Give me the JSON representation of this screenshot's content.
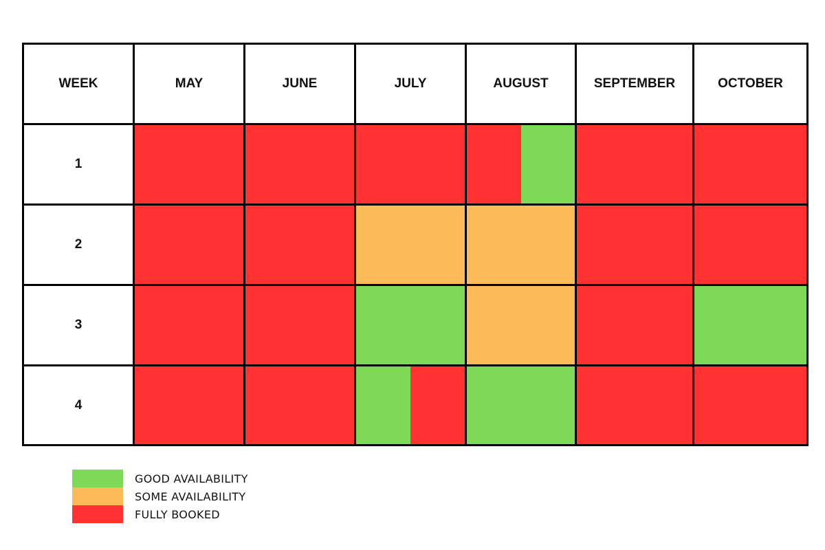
{
  "chart_data": {
    "type": "table",
    "title": "",
    "header_label": "WEEK",
    "columns": [
      "MAY",
      "JUNE",
      "JULY",
      "AUGUST",
      "SEPTEMBER",
      "OCTOBER"
    ],
    "rows": [
      "1",
      "2",
      "3",
      "4"
    ],
    "cells": [
      [
        [
          "full"
        ],
        [
          "full"
        ],
        [
          "full"
        ],
        [
          "full",
          "good"
        ],
        [
          "full"
        ],
        [
          "full"
        ]
      ],
      [
        [
          "full"
        ],
        [
          "full"
        ],
        [
          "some"
        ],
        [
          "some"
        ],
        [
          "full"
        ],
        [
          "full"
        ]
      ],
      [
        [
          "full"
        ],
        [
          "full"
        ],
        [
          "good"
        ],
        [
          "some"
        ],
        [
          "full"
        ],
        [
          "good"
        ]
      ],
      [
        [
          "full"
        ],
        [
          "full"
        ],
        [
          "good",
          "full"
        ],
        [
          "good"
        ],
        [
          "full"
        ],
        [
          "full"
        ]
      ]
    ],
    "status_colors": {
      "good": "#7ed957",
      "some": "#fdba59",
      "full": "#ff3131"
    },
    "legend": [
      {
        "status": "good",
        "label": "GOOD AVAILABILITY"
      },
      {
        "status": "some",
        "label": "SOME AVAILABILITY"
      },
      {
        "status": "full",
        "label": "FULLY BOOKED"
      }
    ]
  }
}
